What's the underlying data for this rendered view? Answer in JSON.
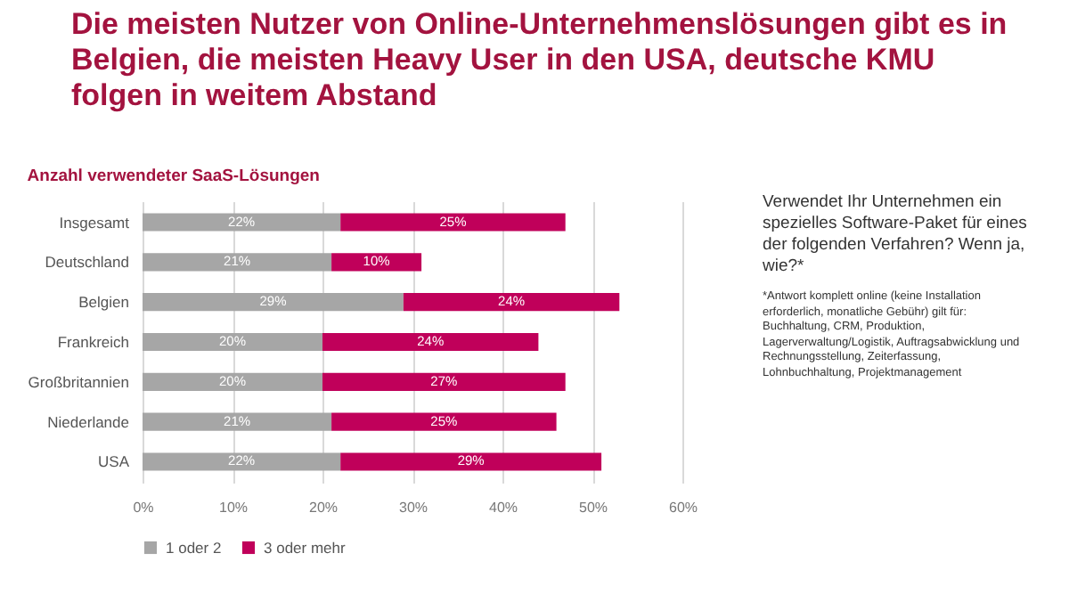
{
  "chart_data": {
    "type": "bar",
    "orientation": "horizontal",
    "stacked": true,
    "title": "Die meisten Nutzer von Online-Unternehmenslösungen gibt es in Belgien, die meisten Heavy User in den USA, deutsche KMU folgen in weitem Abstand",
    "subtitle": "Anzahl verwendeter SaaS-Lösungen",
    "categories": [
      "Insgesamt",
      "Deutschland",
      "Belgien",
      "Frankreich",
      "Großbritannien",
      "Niederlande",
      "USA"
    ],
    "series": [
      {
        "name": "1 oder 2",
        "color": "#a6a6a6",
        "values": [
          22,
          21,
          29,
          20,
          20,
          21,
          22
        ],
        "value_labels": [
          "22%",
          "21%",
          "29%",
          "20%",
          "20%",
          "21%",
          "22%"
        ]
      },
      {
        "name": "3 oder mehr",
        "color": "#c0005a",
        "values": [
          25,
          10,
          24,
          24,
          27,
          25,
          29
        ],
        "value_labels": [
          "25%",
          "10%",
          "24%",
          "24%",
          "27%",
          "25%",
          "29%"
        ]
      }
    ],
    "xlim": [
      0,
      60
    ],
    "xticks": [
      {
        "value": 0,
        "label": "0%"
      },
      {
        "value": 10,
        "label": "10%"
      },
      {
        "value": 20,
        "label": "20%"
      },
      {
        "value": 30,
        "label": "30%"
      },
      {
        "value": 40,
        "label": "40%"
      },
      {
        "value": 50,
        "label": "50%"
      },
      {
        "value": 60,
        "label": "60%"
      }
    ],
    "grid": "x",
    "legend": "bottom left",
    "annotations": [
      "Verwendet Ihr Unternehmen  ein spezielles Software-Paket für eines der folgenden Verfahren? Wenn ja, wie?*",
      "*Antwort komplett online (keine Installation erforderlich, monatliche Gebühr) gilt für: Buchhaltung, CRM, Produktion, Lagerverwaltung/Logistik, Auftragsabwicklung und Rechnungsstellung, Zeiterfassung, Lohnbuchhaltung, Projektmanagement"
    ]
  }
}
